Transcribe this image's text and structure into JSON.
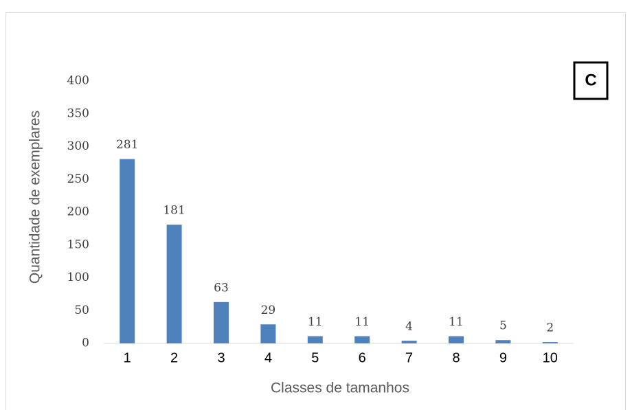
{
  "chart_data": {
    "type": "bar",
    "annotation": "C",
    "xlabel": "Classes de tamanhos",
    "ylabel": "Quantidade de exemplares",
    "categories": [
      "1",
      "2",
      "3",
      "4",
      "5",
      "6",
      "7",
      "8",
      "9",
      "10"
    ],
    "values": [
      281,
      181,
      63,
      29,
      11,
      11,
      4,
      11,
      5,
      2
    ],
    "color": "#4f81bd",
    "ylim": [
      0,
      400
    ],
    "yticks": [
      0,
      50,
      100,
      150,
      200,
      250,
      300,
      350,
      400
    ],
    "grid": false
  }
}
